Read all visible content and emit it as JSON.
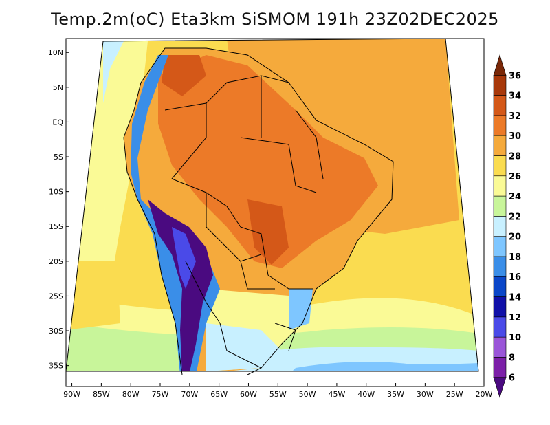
{
  "title": "Temp.2m(oC) Eta3km SiSMOM 191h 23Z02DEC2025",
  "map": {
    "extent": {
      "lon_min": -91,
      "lon_max": -20,
      "lat_min": -38,
      "lat_max": 12
    },
    "lat_ticks": [
      {
        "lat": 10,
        "label": "10N"
      },
      {
        "lat": 5,
        "label": "5N"
      },
      {
        "lat": 0,
        "label": "EQ"
      },
      {
        "lat": -5,
        "label": "5S"
      },
      {
        "lat": -10,
        "label": "10S"
      },
      {
        "lat": -15,
        "label": "15S"
      },
      {
        "lat": -20,
        "label": "20S"
      },
      {
        "lat": -25,
        "label": "25S"
      },
      {
        "lat": -30,
        "label": "30S"
      },
      {
        "lat": -35,
        "label": "35S"
      }
    ],
    "lon_ticks": [
      {
        "lon": -90,
        "label": "90W"
      },
      {
        "lon": -85,
        "label": "85W"
      },
      {
        "lon": -80,
        "label": "80W"
      },
      {
        "lon": -75,
        "label": "75W"
      },
      {
        "lon": -70,
        "label": "70W"
      },
      {
        "lon": -65,
        "label": "65W"
      },
      {
        "lon": -60,
        "label": "60W"
      },
      {
        "lon": -55,
        "label": "55W"
      },
      {
        "lon": -50,
        "label": "50W"
      },
      {
        "lon": -45,
        "label": "45W"
      },
      {
        "lon": -40,
        "label": "40W"
      },
      {
        "lon": -35,
        "label": "35W"
      },
      {
        "lon": -30,
        "label": "30W"
      },
      {
        "lon": -25,
        "label": "25W"
      },
      {
        "lon": -20,
        "label": "20W"
      }
    ]
  },
  "colorbar": {
    "labels": [
      "6",
      "8",
      "10",
      "12",
      "14",
      "16",
      "18",
      "20",
      "22",
      "24",
      "26",
      "28",
      "30",
      "32",
      "34",
      "36"
    ],
    "colors": [
      "#4a0a80",
      "#7c1fa8",
      "#9a55d8",
      "#4a4ae8",
      "#1010a8",
      "#0a46c8",
      "#3a8ee8",
      "#7ec6ff",
      "#c8f0ff",
      "#c8f59a",
      "#fafa96",
      "#fadc50",
      "#f5aa3c",
      "#ec7a28",
      "#d45818",
      "#a8380a",
      "#7a2808"
    ]
  },
  "regions": {
    "ocean_mid": "#f5aa3c",
    "ocean_warm": "#f5aa3c",
    "pacific": "#fadc50",
    "land": "#ec7a28"
  }
}
